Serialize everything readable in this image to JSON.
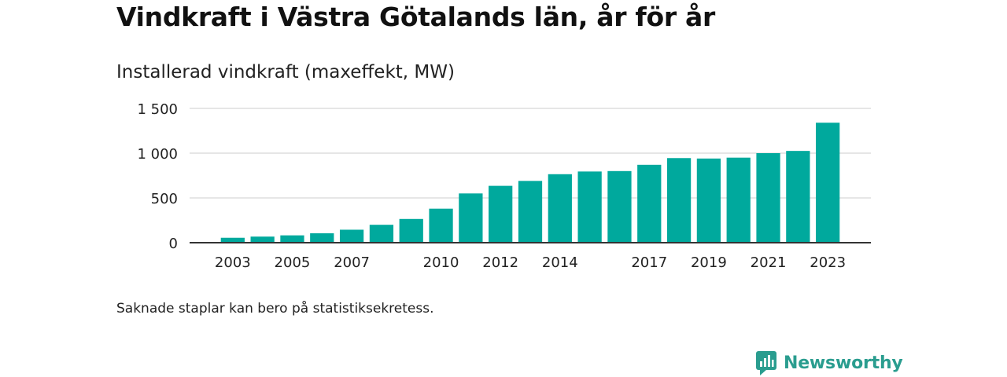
{
  "title": "Vindkraft i Västra Götalands län, år för år",
  "subtitle": "Installerad vindkraft (maxeffekt, MW)",
  "note": "Saknade staplar kan bero på statistiksekretess.",
  "brand": {
    "name": "Newsworthy",
    "icon": "newsworthy-logo-icon",
    "color": "#2a9d8f"
  },
  "bar_color": "#00a99d",
  "chart_data": {
    "type": "bar",
    "title": "Vindkraft i Västra Götalands län, år för år",
    "subtitle": "Installerad vindkraft (maxeffekt, MW)",
    "xlabel": "",
    "ylabel": "",
    "categories": [
      "2003",
      "2004",
      "2005",
      "2006",
      "2007",
      "2008",
      "2009",
      "2010",
      "2011",
      "2012",
      "2013",
      "2014",
      "2015",
      "2016",
      "2017",
      "2018",
      "2019",
      "2020",
      "2021",
      "2022",
      "2023"
    ],
    "values": [
      55,
      68,
      82,
      105,
      145,
      200,
      265,
      380,
      550,
      635,
      690,
      765,
      795,
      800,
      870,
      945,
      940,
      950,
      1000,
      1025,
      1340
    ],
    "x_tick_labels": [
      "2003",
      "2005",
      "2007",
      "2010",
      "2012",
      "2014",
      "2017",
      "2019",
      "2021",
      "2023"
    ],
    "y_ticks": [
      0,
      500,
      1000,
      1500
    ],
    "y_tick_labels": [
      "0",
      "500",
      "1 000",
      "1 500"
    ],
    "ylim": [
      0,
      1500
    ],
    "grid": true,
    "legend": "none"
  }
}
